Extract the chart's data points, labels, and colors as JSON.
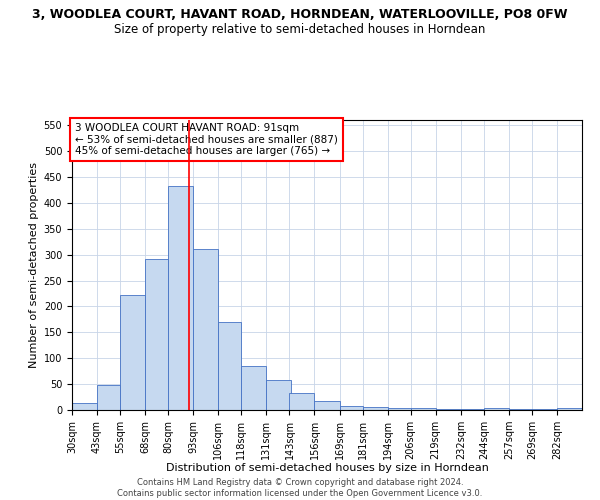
{
  "title": "3, WOODLEA COURT, HAVANT ROAD, HORNDEAN, WATERLOOVILLE, PO8 0FW",
  "subtitle": "Size of property relative to semi-detached houses in Horndean",
  "xlabel": "Distribution of semi-detached houses by size in Horndean",
  "ylabel": "Number of semi-detached properties",
  "footer_line1": "Contains HM Land Registry data © Crown copyright and database right 2024.",
  "footer_line2": "Contains public sector information licensed under the Open Government Licence v3.0.",
  "annotation_line1": "3 WOODLEA COURT HAVANT ROAD: 91sqm",
  "annotation_line2": "← 53% of semi-detached houses are smaller (887)",
  "annotation_line3": "45% of semi-detached houses are larger (765) →",
  "bar_left_edges": [
    30,
    43,
    55,
    68,
    80,
    93,
    106,
    118,
    131,
    143,
    156,
    169,
    181,
    194,
    206,
    219,
    232,
    244,
    257,
    269,
    282
  ],
  "bar_heights": [
    13,
    49,
    222,
    291,
    432,
    311,
    169,
    85,
    58,
    33,
    18,
    8,
    6,
    4,
    3,
    2,
    1,
    3,
    1,
    1,
    4
  ],
  "bar_widths": [
    13,
    12,
    13,
    12,
    13,
    13,
    12,
    13,
    13,
    13,
    13,
    12,
    13,
    12,
    13,
    13,
    12,
    13,
    12,
    13,
    13
  ],
  "bar_color": "#c6d9f0",
  "bar_edgecolor": "#4472c4",
  "red_line_x": 91,
  "ylim": [
    0,
    560
  ],
  "yticks": [
    0,
    50,
    100,
    150,
    200,
    250,
    300,
    350,
    400,
    450,
    500,
    550
  ],
  "xtick_labels": [
    "30sqm",
    "43sqm",
    "55sqm",
    "68sqm",
    "80sqm",
    "93sqm",
    "106sqm",
    "118sqm",
    "131sqm",
    "143sqm",
    "156sqm",
    "169sqm",
    "181sqm",
    "194sqm",
    "206sqm",
    "219sqm",
    "232sqm",
    "244sqm",
    "257sqm",
    "269sqm",
    "282sqm"
  ],
  "title_fontsize": 9,
  "subtitle_fontsize": 8.5,
  "axis_label_fontsize": 8,
  "tick_fontsize": 7,
  "annotation_fontsize": 7.5,
  "footer_fontsize": 6,
  "background_color": "#ffffff",
  "grid_color": "#c8d4e8"
}
